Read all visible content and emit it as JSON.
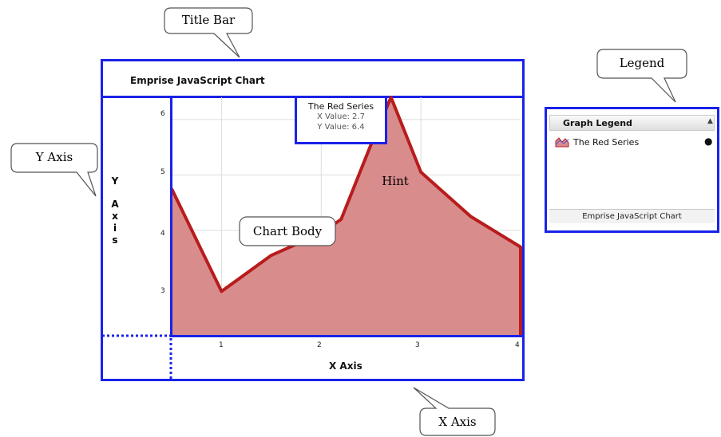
{
  "callouts": {
    "title_bar": "Title Bar",
    "legend": "Legend",
    "y_axis": "Y Axis",
    "hint": "Hint",
    "chart_body": "Chart Body",
    "x_axis": "X Axis"
  },
  "chart": {
    "title": "Emprise JavaScript Chart",
    "x_axis_title": "X Axis",
    "y_axis_title_chars": [
      "Y",
      "A",
      "x",
      "i",
      "s"
    ],
    "x_ticks": [
      "1",
      "2",
      "3",
      "4"
    ],
    "y_ticks": [
      "6",
      "5",
      "4",
      "3"
    ],
    "hint": {
      "title": "The Red Series",
      "x_line": "X Value: 2.7",
      "y_line": "Y Value: 6.4"
    }
  },
  "legend": {
    "title": "Graph Legend",
    "collapse_icon": "chevron-up-icon",
    "item_label": "The Red Series",
    "item_icon": "series-swatch-icon",
    "visibility_icon": "eye-icon",
    "footer": "Emprise JavaScript Chart"
  },
  "colors": {
    "frame": "#1a22e8",
    "series_line": "#b81c1c",
    "series_fill": "#d98c8c"
  },
  "chart_data": {
    "type": "area",
    "title": "Emprise JavaScript Chart",
    "xlabel": "X Axis",
    "ylabel": "Y Axis",
    "xlim": [
      0.5,
      4.0
    ],
    "ylim": [
      2.1,
      6.4
    ],
    "grid": true,
    "legend_position": "right",
    "series": [
      {
        "name": "The Red Series",
        "points": [
          [
            0.5,
            4.75
          ],
          [
            1.0,
            2.9
          ],
          [
            1.5,
            3.55
          ],
          [
            2.0,
            3.95
          ],
          [
            2.2,
            4.2
          ],
          [
            2.5,
            5.55
          ],
          [
            2.7,
            6.4
          ],
          [
            3.0,
            5.05
          ],
          [
            3.5,
            4.25
          ],
          [
            4.0,
            3.7
          ]
        ]
      }
    ]
  }
}
